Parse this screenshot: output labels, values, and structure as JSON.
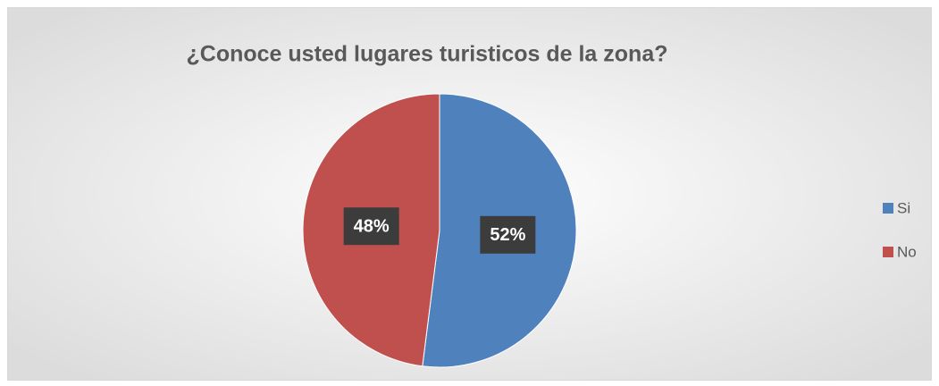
{
  "chart_data": {
    "type": "pie",
    "title": "¿Conoce usted lugares turisticos de la zona?",
    "categories": [
      "Si",
      "No"
    ],
    "values": [
      52,
      48
    ],
    "value_labels": [
      "52%",
      "48%"
    ],
    "colors": [
      "#4f81bd",
      "#c0504d"
    ],
    "legend": "right"
  }
}
